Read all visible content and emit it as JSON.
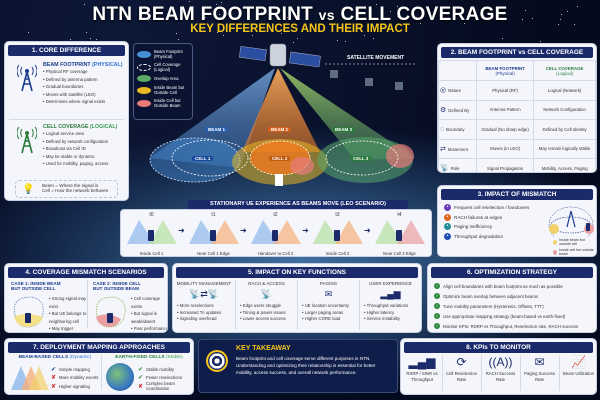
{
  "header": {
    "title_a": "NTN BEAM FOOTPRINT",
    "title_vs": "vs",
    "title_b": "CELL COVERAGE",
    "subtitle": "KEY DIFFERENCES AND THEIR IMPACT"
  },
  "core": {
    "title": "1. CORE DIFFERENCE",
    "beam": {
      "label": "BEAM FOOTPRINT",
      "tag": "(PHYSICAL)",
      "items": [
        "Physical RF coverage",
        "Defined by antenna pattern",
        "Gradual boundaries",
        "Moves with satellite (LEO)",
        "Determines where signal exists"
      ]
    },
    "cell": {
      "label": "CELL COVERAGE",
      "tag": "(LOGICAL)",
      "items": [
        "Logical service area",
        "Defined by network configuration",
        "Broadcast via Cell ID",
        "May be stable or dynamic",
        "Used for mobility, paging, access"
      ]
    },
    "tip": [
      "Beam = Where the signal is",
      "Cell = How the network behaves"
    ]
  },
  "legend": [
    {
      "label": "Beam Footprint (Physical)",
      "color": "#4a90d9"
    },
    {
      "label": "Cell Coverage (Logical)",
      "color": "transparent"
    },
    {
      "label": "Overlap Area",
      "color": "#5aa86a"
    },
    {
      "label": "Inside Beam but Outside Cell",
      "color": "#e8b923"
    },
    {
      "label": "Inside Cell but Outside Beam",
      "color": "#e87a7a"
    }
  ],
  "scene": {
    "movement": "SATELLITE MOVEMENT",
    "beams": [
      "BEAM 1",
      "BEAM 2",
      "BEAM 3"
    ],
    "cells": [
      "CELL 1",
      "CELL 2",
      "CELL 3"
    ]
  },
  "compare": {
    "title": "2. BEAM FOOTPRINT vs CELL COVERAGE",
    "col1": "BEAM FOOTPRINT",
    "col1_sub": "(Physical)",
    "col2": "CELL COVERAGE",
    "col2_sub": "(Logical)",
    "rows": [
      {
        "icon": "◎",
        "label": "Nature",
        "beam": "Physical (RF)",
        "cell": "Logical (Network)"
      },
      {
        "icon": "⚙",
        "label": "Defined By",
        "beam": "Antenna Pattern",
        "cell": "Network Configuration"
      },
      {
        "icon": "◌",
        "label": "Boundary",
        "beam": "Gradual (No sharp edge)",
        "cell": "Defined by Cell Identity"
      },
      {
        "icon": "⇄",
        "label": "Movement",
        "beam": "Moves (in LEO)",
        "cell": "May remain logically stable"
      },
      {
        "icon": "📡",
        "label": "Role",
        "beam": "Signal Propagation",
        "cell": "Mobility, Access, Paging"
      }
    ]
  },
  "mismatch": {
    "title": "3. IMPACT OF MISMATCH",
    "items": [
      "Frequent cell reselection / handovers",
      "RACH failures at edges",
      "Paging inefficiency",
      "Throughput degradation"
    ],
    "icon_colors": [
      "#6a3fb5",
      "#e0651d",
      "#1f8c96",
      "#1f4fb5"
    ],
    "legend": [
      "Inside beam but outside cell",
      "Inside cell but outside beam"
    ]
  },
  "timeline": {
    "title": "STATIONARY UE EXPERIENCE AS BEAMS MOVE (LEO SCENARIO)",
    "steps": [
      {
        "t": "t0",
        "cap": "Inside Cell 1"
      },
      {
        "t": "t1",
        "cap": "Near Cell 1 Edge"
      },
      {
        "t": "t2",
        "cap": "Handover to Cell 2"
      },
      {
        "t": "t3",
        "cap": "Inside Cell 2"
      },
      {
        "t": "t4",
        "cap": "Near Cell 2 Edge"
      }
    ]
  },
  "scenarios": {
    "title": "4. COVERAGE MISMATCH SCENARIOS",
    "case1": {
      "title": "CASE 1: INSIDE BEAM BUT OUTSIDE CELL",
      "items": [
        "Strong signal may exist",
        "But UE belongs to neighboring cell",
        "May trigger reselection"
      ]
    },
    "case2": {
      "title": "CASE 2: INSIDE CELL BUT OUTSIDE BEAM",
      "items": [
        "Cell coverage exists",
        "But signal is weak/absent",
        "Poor performance or access failure"
      ]
    }
  },
  "functions": {
    "title": "5. IMPACT ON KEY FUNCTIONS",
    "cols": [
      {
        "title": "MOBILITY MANAGEMENT",
        "icon": "📡⇄📡",
        "items": [
          "More reselections",
          "Increased TA updates",
          "Signaling overhead"
        ]
      },
      {
        "title": "RACH & ACCESS",
        "icon": "📡",
        "items": [
          "Edge users struggle",
          "Timing & power issues",
          "Lower access success"
        ]
      },
      {
        "title": "PAGING",
        "icon": "✉",
        "items": [
          "UE location uncertainty",
          "Larger paging areas",
          "Higher CORE load"
        ]
      },
      {
        "title": "USER EXPERIENCE",
        "icon": "▂▄▆",
        "items": [
          "Throughput variations",
          "Higher latency",
          "Service instability"
        ]
      }
    ]
  },
  "optimization": {
    "title": "6. OPTIMIZATION STRATEGY",
    "items": [
      "Align cell boundaries with beam footprint as much as possible",
      "Optimize beam overlap between adjacent beams",
      "Tune mobility parameters (Hysteresis, Offsets, TTT)",
      "Use appropriate mapping strategy (beam-based vs earth-fixed)",
      "Monitor KPIs: RSRP vs Throughput, Reselection rate, RACH success"
    ]
  },
  "deployment": {
    "title": "7. DEPLOYMENT MAPPING APPROACHES",
    "beam_based": {
      "label": "BEAM-BASED CELLS",
      "tag": "(Dynamic)",
      "items": [
        {
          "ok": true,
          "text": "Simple mapping"
        },
        {
          "ok": false,
          "text": "More mobility events"
        },
        {
          "ok": false,
          "text": "Higher signaling"
        }
      ]
    },
    "earth_fixed": {
      "label": "EARTH-FIXED CELLS",
      "tag": "(Stable)",
      "items": [
        {
          "ok": true,
          "text": "Stable mobility"
        },
        {
          "ok": true,
          "text": "Fewer reselections"
        },
        {
          "ok": false,
          "text": "Complex beam coordination"
        }
      ]
    }
  },
  "takeaway": {
    "title": "KEY TAKEAWAY",
    "text": "Beam footprint and cell coverage serve different purposes in NTN. Understanding and optimizing their relationship is essential for better mobility, access success, and overall network performance."
  },
  "kpis": {
    "title": "8. KPIs TO MONITOR",
    "items": [
      {
        "icon": "▂▄▆",
        "label": "RSRP / SINR vs Throughput"
      },
      {
        "icon": "⟳",
        "label": "Cell Reselection Rate"
      },
      {
        "icon": "((A))",
        "label": "RACH Success Rate"
      },
      {
        "icon": "✉",
        "label": "Paging Success Rate"
      },
      {
        "icon": "📈",
        "label": "Beam Utilization"
      }
    ]
  }
}
